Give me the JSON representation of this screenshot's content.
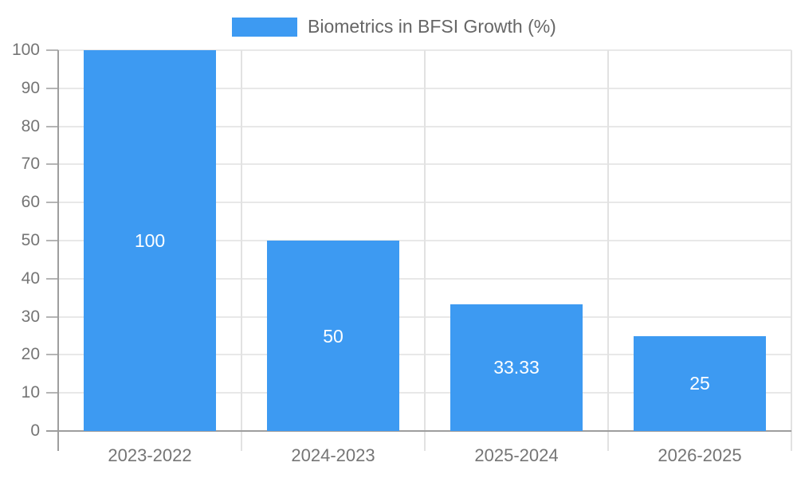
{
  "chart_data": {
    "type": "bar",
    "title": "",
    "xlabel": "",
    "ylabel": "",
    "categories": [
      "2023-2022",
      "2024-2023",
      "2025-2024",
      "2026-2025"
    ],
    "series": [
      {
        "name": "Biometrics in BFSI Growth (%)",
        "values": [
          100,
          50,
          33.33,
          25
        ],
        "value_labels": [
          "100",
          "50",
          "33.33",
          "25"
        ],
        "color": "#3d9af2"
      }
    ],
    "yticks": [
      0,
      10,
      20,
      30,
      40,
      50,
      60,
      70,
      80,
      90,
      100
    ],
    "ylim": [
      0,
      100
    ],
    "grid": true,
    "legend_position": "top-center",
    "colors": {
      "bar": "#3d9af2",
      "axis": "#9e9e9e",
      "gridline": "#e8e8e8",
      "tick_label": "#757575",
      "legend_text": "#666666",
      "value_label": "#ffffff",
      "background": "#ffffff"
    }
  }
}
